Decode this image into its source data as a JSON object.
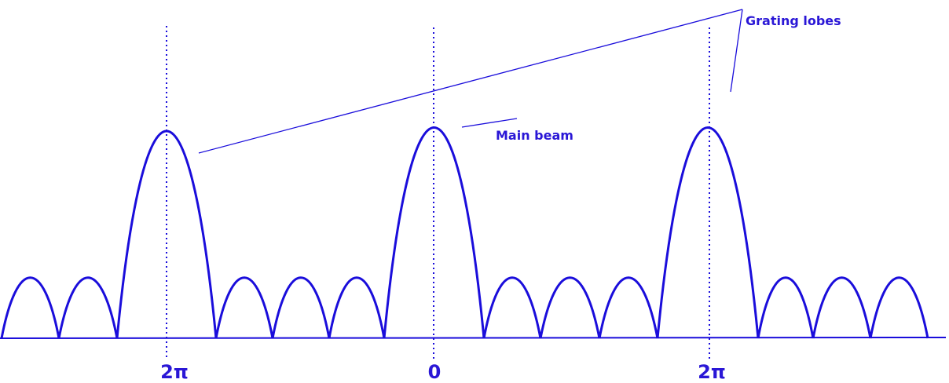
{
  "labels": {
    "grating_lobes": "Grating lobes",
    "main_beam": "Main beam",
    "tick_left": "2π",
    "tick_center": "0",
    "tick_right": "2π"
  },
  "colors": {
    "stroke": "#1a0ddb",
    "label": "#2a17d6"
  }
}
